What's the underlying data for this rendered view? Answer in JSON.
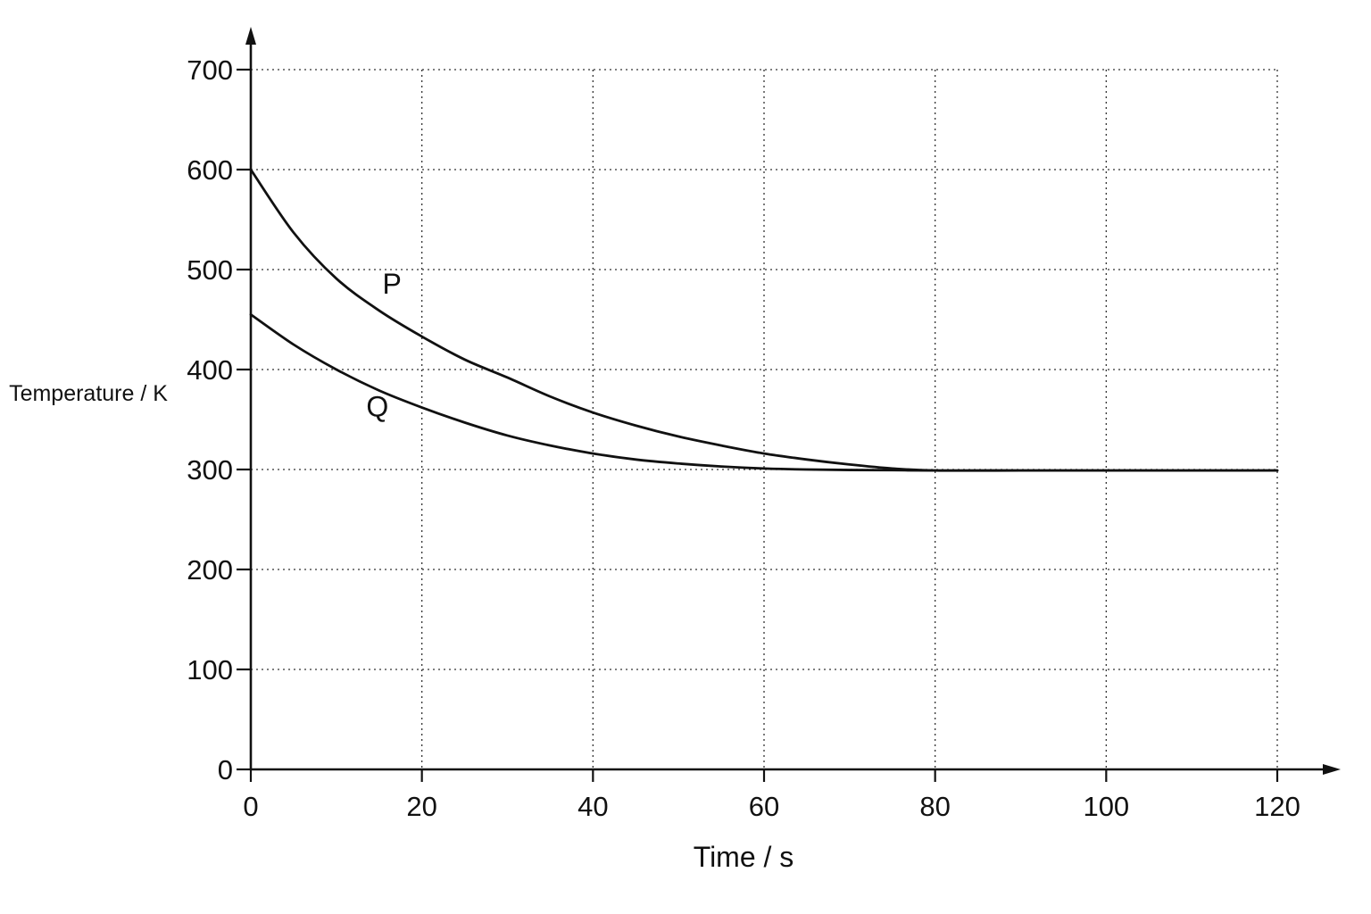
{
  "chart_data": {
    "type": "line",
    "title": "",
    "xlabel": "Time / s",
    "ylabel": "Temperature / K",
    "xlim": [
      0,
      120
    ],
    "ylim": [
      0,
      700
    ],
    "x_ticks": [
      0,
      20,
      40,
      60,
      80,
      100,
      120
    ],
    "y_ticks": [
      0,
      100,
      200,
      300,
      400,
      500,
      600,
      700
    ],
    "grid": true,
    "grid_style": "dotted",
    "series": [
      {
        "name": "P",
        "color": "#111111",
        "x": [
          0,
          5,
          10,
          15,
          20,
          25,
          30,
          35,
          40,
          45,
          50,
          55,
          60,
          65,
          70,
          75,
          80,
          90,
          100,
          110,
          120
        ],
        "y": [
          600,
          537,
          491,
          459,
          433,
          410,
          392,
          373,
          357,
          344,
          333,
          324,
          316,
          310,
          305,
          301,
          299,
          299,
          299,
          299,
          299
        ]
      },
      {
        "name": "Q",
        "color": "#111111",
        "x": [
          0,
          5,
          10,
          15,
          20,
          25,
          30,
          35,
          40,
          45,
          50,
          55,
          60,
          65,
          70,
          75,
          80,
          90,
          100,
          110,
          120
        ],
        "y": [
          455,
          425,
          400,
          379,
          362,
          347,
          334,
          324,
          316,
          310,
          306,
          303,
          301,
          300,
          299.5,
          299.3,
          299,
          299,
          299,
          299,
          299
        ]
      }
    ],
    "series_labels": [
      {
        "text": "P",
        "x": 16.5,
        "y": 476
      },
      {
        "text": "Q",
        "x": 14.8,
        "y": 353
      }
    ]
  }
}
